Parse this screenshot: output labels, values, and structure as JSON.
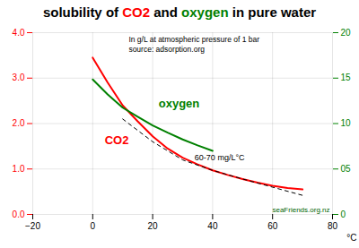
{
  "chart_data": {
    "type": "line",
    "title": "solubility of CO2 and oxygen in pure water",
    "subtitle": "In g/L at atmospheric pressure of 1 bar\nsource: adsorption.org",
    "xlabel": "°C",
    "annotations": [
      "60-70 mg/L°C",
      "seaFriends.org.nz"
    ],
    "xlim": [
      -20,
      80
    ],
    "xticks": [
      -20,
      0,
      20,
      40,
      60,
      80
    ],
    "ylim": [
      0.0,
      4.0
    ],
    "yticks": [
      {
        "value": 0.0,
        "label": "0.0"
      },
      {
        "value": 1.0,
        "label": "1.0"
      },
      {
        "value": 2.0,
        "label": "2.0"
      },
      {
        "value": 3.0,
        "label": "3.0"
      },
      {
        "value": 4.0,
        "label": "4.0"
      }
    ],
    "y2lim": [
      0,
      20
    ],
    "y2ticks": [
      0,
      {
        "value": 5,
        "label": "05"
      },
      10,
      15,
      20
    ],
    "grid": true,
    "series": [
      {
        "name": "CO2",
        "color": "red",
        "line_style": "solid",
        "axis": "y",
        "x": [
          0,
          5,
          10,
          15,
          20,
          25,
          30,
          35,
          40,
          45,
          50,
          55,
          60,
          65,
          70
        ],
        "values": [
          3.45,
          2.9,
          2.4,
          2.05,
          1.72,
          1.45,
          1.25,
          1.1,
          0.97,
          0.87,
          0.78,
          0.7,
          0.63,
          0.58,
          0.55
        ]
      },
      {
        "name": "oxygen",
        "color": "green",
        "line_style": "solid",
        "axis": "y2",
        "x": [
          0,
          5,
          10,
          15,
          20,
          25,
          30,
          35,
          40
        ],
        "values": [
          14.85,
          13.2,
          11.75,
          10.75,
          9.8,
          9.0,
          8.25,
          7.6,
          7.0
        ]
      },
      {
        "color": "black",
        "line_style": "dashed",
        "axis": "y2",
        "x": [
          10,
          20,
          30,
          40,
          50,
          60,
          70
        ],
        "values": [
          10.5,
          8.0,
          6.0,
          4.85,
          3.9,
          3.0,
          2.1
        ]
      }
    ]
  }
}
